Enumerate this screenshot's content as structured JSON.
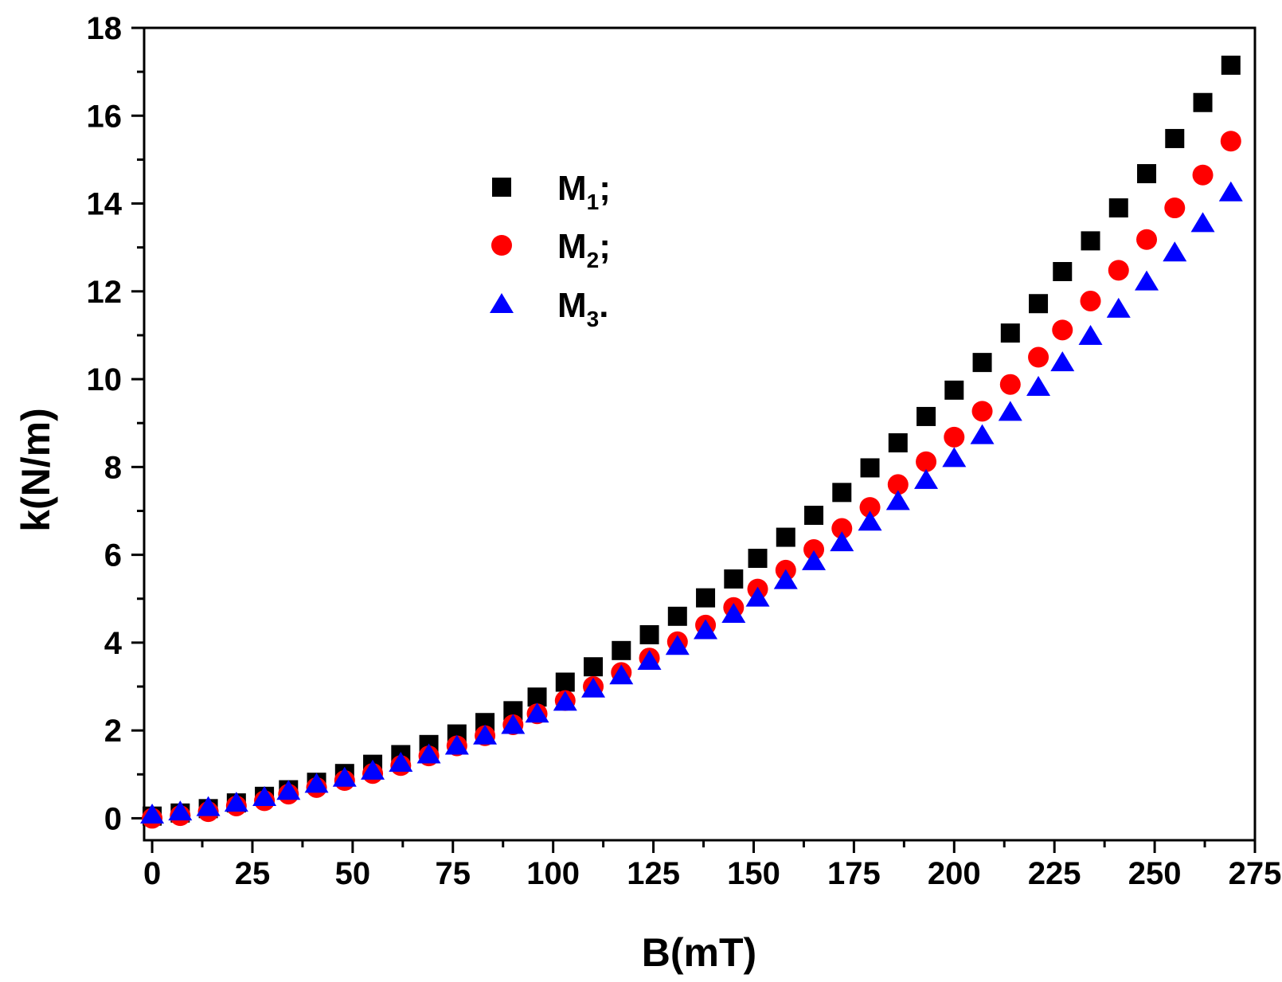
{
  "chart_data": {
    "type": "scatter",
    "title": "",
    "xlabel": "B(mT)",
    "ylabel": "k(N/m)",
    "xlim": [
      -2,
      275
    ],
    "ylim": [
      -0.5,
      18
    ],
    "xticks": [
      0,
      25,
      50,
      75,
      100,
      125,
      150,
      175,
      200,
      225,
      250,
      275
    ],
    "yticks": [
      0,
      2,
      4,
      6,
      8,
      10,
      12,
      14,
      16,
      18
    ],
    "grid": false,
    "legend_position": "upper-left",
    "x": [
      0,
      7,
      14,
      21,
      28,
      34,
      41,
      48,
      55,
      62,
      69,
      76,
      83,
      90,
      96,
      103,
      110,
      117,
      124,
      131,
      138,
      145,
      151,
      158,
      165,
      172,
      179,
      186,
      193,
      200,
      207,
      214,
      221,
      227,
      234,
      241,
      248,
      255,
      262,
      269
    ],
    "series": [
      {
        "name": "M1;",
        "legend_main": "M",
        "legend_sub": "1",
        "legend_suffix": ";",
        "marker": "square",
        "color": "#000000",
        "values": [
          0.05,
          0.12,
          0.22,
          0.35,
          0.5,
          0.65,
          0.82,
          1.02,
          1.23,
          1.45,
          1.68,
          1.92,
          2.18,
          2.45,
          2.76,
          3.1,
          3.45,
          3.82,
          4.18,
          4.6,
          5.02,
          5.45,
          5.92,
          6.4,
          6.9,
          7.42,
          7.98,
          8.55,
          9.15,
          9.75,
          10.38,
          11.05,
          11.72,
          12.45,
          13.15,
          13.9,
          14.68,
          15.48,
          16.3,
          17.15
        ]
      },
      {
        "name": "M2;",
        "legend_main": "M",
        "legend_sub": "2",
        "legend_suffix": ";",
        "marker": "circle",
        "color": "#ff0000",
        "values": [
          0.0,
          0.06,
          0.15,
          0.28,
          0.4,
          0.55,
          0.7,
          0.86,
          1.02,
          1.2,
          1.42,
          1.65,
          1.88,
          2.13,
          2.38,
          2.68,
          3.0,
          3.32,
          3.65,
          4.02,
          4.4,
          4.8,
          5.22,
          5.65,
          6.12,
          6.6,
          7.08,
          7.6,
          8.12,
          8.68,
          9.27,
          9.88,
          10.5,
          11.12,
          11.78,
          12.48,
          13.18,
          13.9,
          14.65,
          15.42
        ]
      },
      {
        "name": "M3.",
        "legend_main": "M",
        "legend_sub": "3",
        "legend_suffix": ".",
        "marker": "triangle",
        "color": "#0000ff",
        "values": [
          0.08,
          0.15,
          0.25,
          0.35,
          0.48,
          0.62,
          0.78,
          0.92,
          1.08,
          1.26,
          1.45,
          1.65,
          1.88,
          2.12,
          2.38,
          2.65,
          2.95,
          3.25,
          3.58,
          3.92,
          4.28,
          4.65,
          5.02,
          5.42,
          5.85,
          6.28,
          6.75,
          7.22,
          7.7,
          8.2,
          8.72,
          9.25,
          9.82,
          10.38,
          10.98,
          11.6,
          12.22,
          12.88,
          13.55,
          14.25
        ]
      }
    ]
  }
}
